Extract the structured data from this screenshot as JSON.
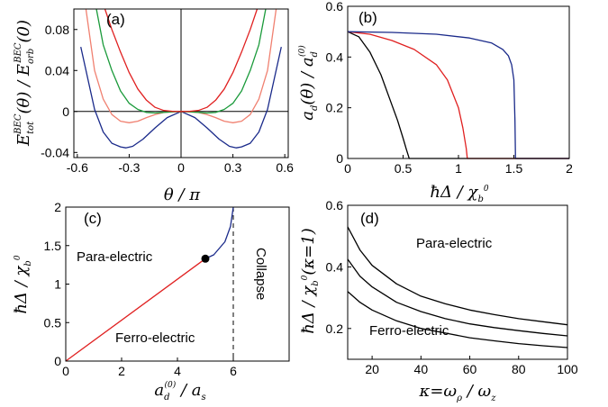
{
  "colors": {
    "navy": "#1a2a8a",
    "red": "#e02020",
    "green": "#1a9a3a",
    "salmon": "#f08070",
    "black": "#000000"
  },
  "chart_data": [
    {
      "id": "a",
      "type": "line",
      "panel_label": "(a)",
      "xlabel": "θ/π",
      "ylabel": "E_tot^BEC(θ)/E_orb^BEC(0)",
      "xlim": [
        -0.62,
        0.62
      ],
      "ylim": [
        -0.045,
        0.1
      ],
      "xticks": [
        "-0.6",
        "-0.3",
        "0",
        "0.3",
        "0.6"
      ],
      "xtick_values": [
        -0.6,
        -0.3,
        0,
        0.3,
        0.6
      ],
      "yticks": [
        "-0.04",
        "0",
        "0.04",
        "0.08"
      ],
      "ytick_values": [
        -0.04,
        0,
        0.04,
        0.08
      ],
      "zero_lines": true,
      "series": [
        {
          "color": "navy",
          "x": [
            -0.58,
            -0.5,
            -0.45,
            -0.4,
            -0.35,
            -0.32,
            -0.28,
            -0.22,
            -0.15,
            -0.08,
            0,
            0.08,
            0.15,
            0.22,
            0.28,
            0.32,
            0.35,
            0.4,
            0.45,
            0.5,
            0.58
          ],
          "y": [
            0.063,
            0.002,
            -0.02,
            -0.031,
            -0.0345,
            -0.0355,
            -0.034,
            -0.027,
            -0.016,
            -0.006,
            0,
            -0.006,
            -0.016,
            -0.027,
            -0.034,
            -0.0355,
            -0.0345,
            -0.031,
            -0.02,
            0.002,
            0.063
          ]
        },
        {
          "color": "salmon",
          "x": [
            -0.55,
            -0.5,
            -0.45,
            -0.4,
            -0.35,
            -0.3,
            -0.25,
            -0.2,
            -0.15,
            -0.1,
            0,
            0.1,
            0.15,
            0.2,
            0.25,
            0.3,
            0.35,
            0.4,
            0.45,
            0.5,
            0.55
          ],
          "y": [
            0.1,
            0.04,
            0.012,
            -0.003,
            -0.0095,
            -0.011,
            -0.0095,
            -0.006,
            -0.003,
            -0.001,
            0,
            -0.001,
            -0.003,
            -0.006,
            -0.0095,
            -0.011,
            -0.0095,
            -0.003,
            0.012,
            0.04,
            0.1
          ]
        },
        {
          "color": "green",
          "x": [
            -0.49,
            -0.45,
            -0.4,
            -0.35,
            -0.3,
            -0.25,
            -0.2,
            -0.15,
            -0.1,
            -0.05,
            0,
            0.05,
            0.1,
            0.15,
            0.2,
            0.25,
            0.3,
            0.35,
            0.4,
            0.45,
            0.49
          ],
          "y": [
            0.1,
            0.065,
            0.04,
            0.02,
            0.008,
            0.002,
            -0.001,
            -0.0015,
            -0.001,
            -0.0003,
            0,
            -0.0003,
            -0.001,
            -0.0015,
            -0.001,
            0.002,
            0.008,
            0.02,
            0.04,
            0.065,
            0.1
          ]
        },
        {
          "color": "red",
          "x": [
            -0.44,
            -0.4,
            -0.35,
            -0.3,
            -0.25,
            -0.2,
            -0.15,
            -0.1,
            -0.05,
            0,
            0.05,
            0.1,
            0.15,
            0.2,
            0.25,
            0.3,
            0.35,
            0.4,
            0.44
          ],
          "y": [
            0.1,
            0.08,
            0.058,
            0.038,
            0.022,
            0.011,
            0.004,
            0.001,
            0.0002,
            0,
            0.0002,
            0.001,
            0.004,
            0.011,
            0.022,
            0.038,
            0.058,
            0.08,
            0.1
          ]
        }
      ]
    },
    {
      "id": "b",
      "type": "line",
      "panel_label": "(b)",
      "xlabel": "ħΔ/χ_b^0",
      "ylabel": "a_d(θ)/a_d^(0)",
      "xlim": [
        0,
        2
      ],
      "ylim": [
        0,
        0.6
      ],
      "xticks": [
        "0",
        "0.5",
        "1",
        "1.5",
        "2"
      ],
      "xtick_values": [
        0,
        0.5,
        1,
        1.5,
        2
      ],
      "yticks": [
        "0",
        "0.2",
        "0.4",
        "0.6"
      ],
      "ytick_values": [
        0,
        0.2,
        0.4,
        0.6
      ],
      "series": [
        {
          "color": "black",
          "x": [
            0,
            0.1,
            0.2,
            0.3,
            0.4,
            0.45,
            0.5,
            0.53,
            0.55,
            0.555,
            0.56,
            2
          ],
          "y": [
            0.5,
            0.48,
            0.42,
            0.33,
            0.21,
            0.15,
            0.08,
            0.035,
            0.008,
            0,
            0,
            0
          ]
        },
        {
          "color": "red",
          "x": [
            0,
            0.2,
            0.4,
            0.6,
            0.8,
            0.9,
            1.0,
            1.04,
            1.07,
            1.08,
            2
          ],
          "y": [
            0.5,
            0.49,
            0.465,
            0.43,
            0.37,
            0.31,
            0.2,
            0.12,
            0.04,
            0,
            0
          ]
        },
        {
          "color": "navy",
          "x": [
            0,
            0.4,
            0.8,
            1.1,
            1.3,
            1.4,
            1.45,
            1.48,
            1.5,
            1.51,
            1.515,
            2
          ],
          "y": [
            0.5,
            0.497,
            0.49,
            0.475,
            0.455,
            0.43,
            0.405,
            0.37,
            0.31,
            0.15,
            0,
            0
          ]
        }
      ]
    },
    {
      "id": "c",
      "type": "line",
      "panel_label": "(c)",
      "xlabel": "a_d^(0)/a_s",
      "ylabel": "ħΔ/χ_b^0",
      "xlim": [
        0,
        8
      ],
      "ylim": [
        0,
        2
      ],
      "xticks": [
        "0",
        "2",
        "4",
        "6"
      ],
      "xtick_values": [
        0,
        2,
        4,
        6
      ],
      "yticks": [
        "0",
        "0.5",
        "1",
        "1.5",
        "2"
      ],
      "ytick_values": [
        0,
        0.5,
        1,
        1.5,
        2
      ],
      "series": [
        {
          "color": "red",
          "x": [
            0,
            5
          ],
          "y": [
            0,
            1.33
          ]
        },
        {
          "color": "navy",
          "x": [
            5,
            5.3,
            5.7,
            5.9,
            6
          ],
          "y": [
            1.33,
            1.38,
            1.55,
            1.75,
            2
          ]
        }
      ],
      "critical_point": {
        "x": 5,
        "y": 1.33
      },
      "dashed_line_x": 6,
      "annotations": [
        "Para-electric",
        "Ferro-electric",
        "Collapse"
      ]
    },
    {
      "id": "d",
      "type": "line",
      "panel_label": "(d)",
      "xlabel": "κ=ω_ρ/ω_z",
      "ylabel": "ħΔ/χ_b^0(κ=1)",
      "xlim": [
        10,
        100
      ],
      "ylim": [
        0.1,
        0.6
      ],
      "xticks": [
        "20",
        "40",
        "60",
        "80",
        "100"
      ],
      "xtick_values": [
        20,
        40,
        60,
        80,
        100
      ],
      "yticks": [
        "0.2",
        "0.4",
        "0.6"
      ],
      "ytick_values": [
        0.2,
        0.4,
        0.6
      ],
      "series": [
        {
          "color": "black",
          "x": [
            10,
            15,
            20,
            30,
            40,
            50,
            60,
            70,
            80,
            90,
            100
          ],
          "y": [
            0.53,
            0.455,
            0.405,
            0.345,
            0.305,
            0.28,
            0.26,
            0.245,
            0.232,
            0.222,
            0.212
          ]
        },
        {
          "color": "black",
          "x": [
            10,
            15,
            20,
            30,
            40,
            50,
            60,
            70,
            80,
            90,
            100
          ],
          "y": [
            0.425,
            0.37,
            0.335,
            0.285,
            0.255,
            0.232,
            0.215,
            0.203,
            0.193,
            0.184,
            0.176
          ]
        },
        {
          "color": "black",
          "x": [
            10,
            15,
            20,
            30,
            40,
            50,
            60,
            70,
            80,
            90,
            100
          ],
          "y": [
            0.32,
            0.285,
            0.26,
            0.225,
            0.2,
            0.185,
            0.17,
            0.16,
            0.151,
            0.144,
            0.138
          ]
        }
      ],
      "annotations": [
        "Para-electric",
        "Ferro-electric"
      ]
    }
  ]
}
